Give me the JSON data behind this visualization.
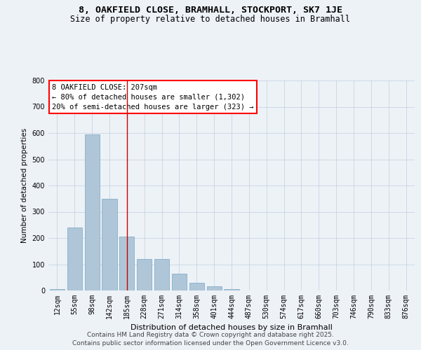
{
  "title": "8, OAKFIELD CLOSE, BRAMHALL, STOCKPORT, SK7 1JE",
  "subtitle": "Size of property relative to detached houses in Bramhall",
  "xlabel": "Distribution of detached houses by size in Bramhall",
  "ylabel": "Number of detached properties",
  "categories": [
    "12sqm",
    "55sqm",
    "98sqm",
    "142sqm",
    "185sqm",
    "228sqm",
    "271sqm",
    "314sqm",
    "358sqm",
    "401sqm",
    "444sqm",
    "487sqm",
    "530sqm",
    "574sqm",
    "617sqm",
    "660sqm",
    "703sqm",
    "746sqm",
    "790sqm",
    "833sqm",
    "876sqm"
  ],
  "values": [
    5,
    240,
    595,
    350,
    205,
    120,
    120,
    65,
    30,
    17,
    5,
    0,
    0,
    0,
    0,
    0,
    0,
    0,
    0,
    0,
    0
  ],
  "bar_color": "#aec6d8",
  "bar_edgecolor": "#8aaec8",
  "annotation_text_line1": "8 OAKFIELD CLOSE: 207sqm",
  "annotation_text_line2": "← 80% of detached houses are smaller (1,302)",
  "annotation_text_line3": "20% of semi-detached houses are larger (323) →",
  "vline_x": 4.5,
  "ylim": [
    0,
    800
  ],
  "yticks": [
    0,
    100,
    200,
    300,
    400,
    500,
    600,
    700,
    800
  ],
  "bg_color": "#edf2f7",
  "plot_bg_color": "#edf2f7",
  "grid_color": "#c0cfe0",
  "footer_line1": "Contains HM Land Registry data © Crown copyright and database right 2025.",
  "footer_line2": "Contains public sector information licensed under the Open Government Licence v3.0.",
  "title_fontsize": 9.5,
  "subtitle_fontsize": 8.5,
  "annotation_fontsize": 7.5,
  "footer_fontsize": 6.5,
  "ylabel_fontsize": 7.5,
  "xlabel_fontsize": 8,
  "tick_fontsize": 7
}
